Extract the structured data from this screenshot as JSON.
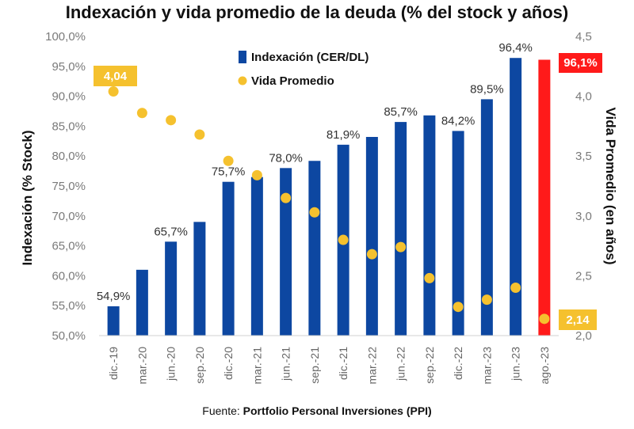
{
  "chart_data": {
    "type": "bar",
    "title": "Indexación y vida promedio de la deuda (% del stock y años)",
    "ylabel_left": "Indexación (% Stock)",
    "ylabel_right": "Vida Promedio (en años)",
    "source_prefix": "Fuente: ",
    "source_name": "Portfolio Personal Inversiones (PPI)",
    "categories": [
      "dic.-19",
      "mar.-20",
      "jun.-20",
      "sep.-20",
      "dic.-20",
      "mar.-21",
      "jun.-21",
      "sep.-21",
      "dic.-21",
      "mar.-22",
      "jun.-22",
      "sep.-22",
      "dic.-22",
      "mar.-23",
      "jun.-23",
      "ago.-23"
    ],
    "left_axis": {
      "min": 50,
      "max": 100,
      "ticks": [
        50,
        55,
        60,
        65,
        70,
        75,
        80,
        85,
        90,
        95,
        100
      ],
      "tick_labels": [
        "50,0%",
        "55,0%",
        "60,0%",
        "65,0%",
        "70,0%",
        "75,0%",
        "80,0%",
        "85,0%",
        "90,0%",
        "95,0%",
        "100,0%"
      ]
    },
    "right_axis": {
      "min": 2.0,
      "max": 4.5,
      "ticks": [
        2.0,
        2.5,
        3.0,
        3.5,
        4.0,
        4.5
      ],
      "tick_labels": [
        "2,0",
        "2,5",
        "3,0",
        "3,5",
        "4,0",
        "4,5"
      ]
    },
    "series": [
      {
        "name": "Indexación (CER/DL)",
        "kind": "bar",
        "axis": "left",
        "color": "#0d47a1",
        "values": [
          54.9,
          61.0,
          65.7,
          69.0,
          75.7,
          76.5,
          78.0,
          79.2,
          81.9,
          83.2,
          85.7,
          86.8,
          84.2,
          89.5,
          96.4,
          96.1
        ]
      },
      {
        "name": "Vida Promedio",
        "kind": "scatter",
        "axis": "right",
        "color": "#f5c12e",
        "values": [
          4.04,
          3.86,
          3.8,
          3.68,
          3.46,
          3.34,
          3.15,
          3.03,
          2.8,
          2.68,
          2.74,
          2.48,
          2.24,
          2.3,
          2.4,
          2.14
        ]
      }
    ],
    "bar_labels": [
      "54,9%",
      "",
      "65,7%",
      "",
      "75,7%",
      "",
      "78,0%",
      "",
      "81,9%",
      "",
      "85,7%",
      "",
      "84,2%",
      "89,5%",
      "96,4%",
      ""
    ],
    "highlight": {
      "bar_index": 15,
      "bar_color": "#ff1a1a",
      "bar_label": "96,1%",
      "point_label": "2,14"
    },
    "first_point_label": "4,04",
    "callout_color": "#f5c12e",
    "grid": false,
    "legend_position": "top-center"
  }
}
